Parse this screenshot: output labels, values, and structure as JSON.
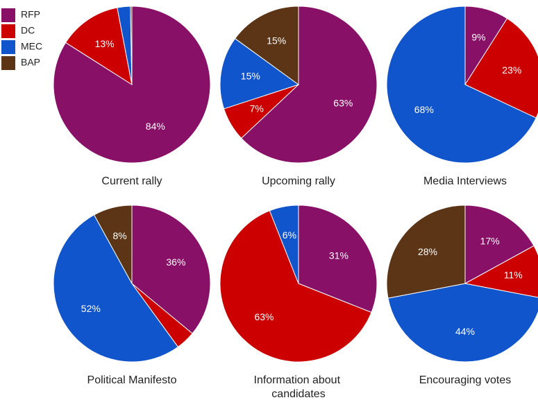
{
  "chart_data": {
    "type": "pie",
    "legend": {
      "placement": "top-left",
      "entries": [
        {
          "name": "RFP",
          "color": "#881066"
        },
        {
          "name": "DC",
          "color": "#cc0000"
        },
        {
          "name": "MEC",
          "color": "#1155cc"
        },
        {
          "name": "BAP",
          "color": "#5b3516"
        }
      ]
    },
    "pies": [
      {
        "title": "Current rally",
        "slices": [
          {
            "series": "RFP",
            "value": 84,
            "label": "84%"
          },
          {
            "series": "DC",
            "value": 13,
            "label": "13%"
          },
          {
            "series": "MEC",
            "value": 2.7,
            "label": ""
          },
          {
            "series": "BAP",
            "value": 0.3,
            "label": ""
          }
        ]
      },
      {
        "title": "Upcoming rally",
        "slices": [
          {
            "series": "RFP",
            "value": 63,
            "label": "63%"
          },
          {
            "series": "DC",
            "value": 7,
            "label": "7%"
          },
          {
            "series": "MEC",
            "value": 15,
            "label": "15%"
          },
          {
            "series": "BAP",
            "value": 15,
            "label": "15%"
          }
        ]
      },
      {
        "title": "Media Interviews",
        "slices": [
          {
            "series": "RFP",
            "value": 9,
            "label": "9%"
          },
          {
            "series": "DC",
            "value": 23,
            "label": "23%"
          },
          {
            "series": "MEC",
            "value": 68,
            "label": "68%"
          }
        ]
      },
      {
        "title": "Political Manifesto",
        "slices": [
          {
            "series": "RFP",
            "value": 36,
            "label": "36%"
          },
          {
            "series": "DC",
            "value": 4,
            "label": ""
          },
          {
            "series": "MEC",
            "value": 52,
            "label": "52%"
          },
          {
            "series": "BAP",
            "value": 8,
            "label": "8%"
          }
        ]
      },
      {
        "title": "Information about candidates",
        "slices": [
          {
            "series": "RFP",
            "value": 31,
            "label": "31%"
          },
          {
            "series": "DC",
            "value": 63,
            "label": "63%"
          },
          {
            "series": "MEC",
            "value": 6,
            "label": "6%"
          }
        ]
      },
      {
        "title": "Encouraging votes",
        "slices": [
          {
            "series": "RFP",
            "value": 17,
            "label": "17%"
          },
          {
            "series": "DC",
            "value": 11,
            "label": "11%"
          },
          {
            "series": "MEC",
            "value": 44,
            "label": "44%"
          },
          {
            "series": "BAP",
            "value": 28,
            "label": "28%"
          }
        ]
      }
    ]
  }
}
